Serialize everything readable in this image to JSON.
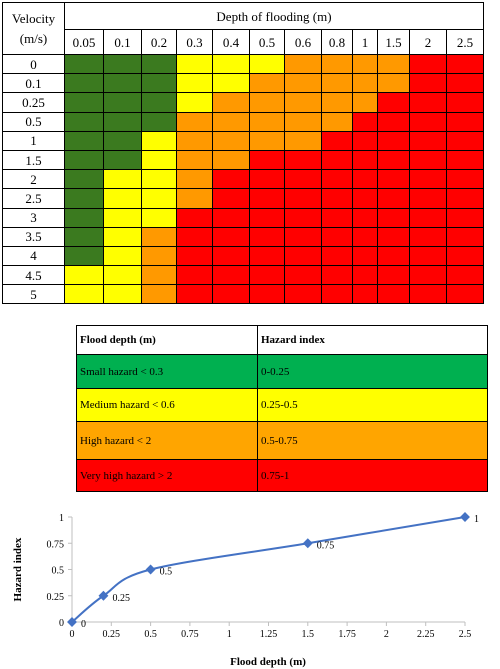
{
  "matrix": {
    "velocity_header": "Velocity\n(m/s)",
    "depth_header": "Depth of flooding (m)",
    "depths": [
      "0.05",
      "0.1",
      "0.2",
      "0.3",
      "0.4",
      "0.5",
      "0.6",
      "0.8",
      "1",
      "1.5",
      "2",
      "2.5"
    ],
    "velocities": [
      "0",
      "0.1",
      "0.25",
      "0.5",
      "1",
      "1.5",
      "2",
      "2.5",
      "3",
      "3.5",
      "4",
      "4.5",
      "5"
    ],
    "colors": {
      "G": "#3b7a1f",
      "Y": "#ffff00",
      "O": "#ff9900",
      "R": "#ff0000"
    },
    "grid": [
      [
        "G",
        "G",
        "G",
        "Y",
        "Y",
        "Y",
        "O",
        "O",
        "O",
        "O",
        "R",
        "R"
      ],
      [
        "G",
        "G",
        "G",
        "Y",
        "Y",
        "O",
        "O",
        "O",
        "O",
        "O",
        "R",
        "R"
      ],
      [
        "G",
        "G",
        "G",
        "Y",
        "O",
        "O",
        "O",
        "O",
        "O",
        "R",
        "R",
        "R"
      ],
      [
        "G",
        "G",
        "G",
        "O",
        "O",
        "O",
        "O",
        "O",
        "R",
        "R",
        "R",
        "R"
      ],
      [
        "G",
        "G",
        "Y",
        "O",
        "O",
        "O",
        "O",
        "R",
        "R",
        "R",
        "R",
        "R"
      ],
      [
        "G",
        "G",
        "Y",
        "O",
        "O",
        "R",
        "R",
        "R",
        "R",
        "R",
        "R",
        "R"
      ],
      [
        "G",
        "Y",
        "Y",
        "O",
        "R",
        "R",
        "R",
        "R",
        "R",
        "R",
        "R",
        "R"
      ],
      [
        "G",
        "Y",
        "Y",
        "O",
        "R",
        "R",
        "R",
        "R",
        "R",
        "R",
        "R",
        "R"
      ],
      [
        "G",
        "Y",
        "Y",
        "R",
        "R",
        "R",
        "R",
        "R",
        "R",
        "R",
        "R",
        "R"
      ],
      [
        "G",
        "Y",
        "O",
        "R",
        "R",
        "R",
        "R",
        "R",
        "R",
        "R",
        "R",
        "R"
      ],
      [
        "G",
        "Y",
        "O",
        "R",
        "R",
        "R",
        "R",
        "R",
        "R",
        "R",
        "R",
        "R"
      ],
      [
        "Y",
        "Y",
        "O",
        "R",
        "R",
        "R",
        "R",
        "R",
        "R",
        "R",
        "R",
        "R"
      ],
      [
        "Y",
        "Y",
        "O",
        "R",
        "R",
        "R",
        "R",
        "R",
        "R",
        "R",
        "R",
        "R"
      ]
    ]
  },
  "legend": {
    "col1": "Flood depth (m)",
    "col2": "Hazard index",
    "rows": [
      {
        "label": "Small hazard < 0.3",
        "index": "0-0.25",
        "color": "#00b050"
      },
      {
        "label": "Medium hazard < 0.6",
        "index": "0.25-0.5",
        "color": "#ffff00"
      },
      {
        "label": "High hazard < 2",
        "index": "0.5-0.75",
        "color": "#ffa500"
      },
      {
        "label": "Very high hazard > 2",
        "index": "0.75-1",
        "color": "#ff0000"
      }
    ]
  },
  "chart_data": {
    "type": "line",
    "x": [
      0,
      0.2,
      0.5,
      1.5,
      2.5
    ],
    "y": [
      0,
      0.25,
      0.5,
      0.75,
      1
    ],
    "point_labels": [
      "0",
      "0.25",
      "0.5",
      "0.75",
      "1"
    ],
    "xlabel": "Flood depth (m)",
    "ylabel": "Hazard index",
    "xlim": [
      0,
      2.5
    ],
    "ylim": [
      0,
      1
    ],
    "xticks": [
      "0",
      "0.25",
      "0.5",
      "0.75",
      "1",
      "1.25",
      "1.5",
      "1.75",
      "2",
      "2.25",
      "2.5"
    ],
    "yticks": [
      "0",
      "0.25",
      "0.5",
      "0.75",
      "1"
    ],
    "grid": false,
    "color": "#4472c4"
  }
}
